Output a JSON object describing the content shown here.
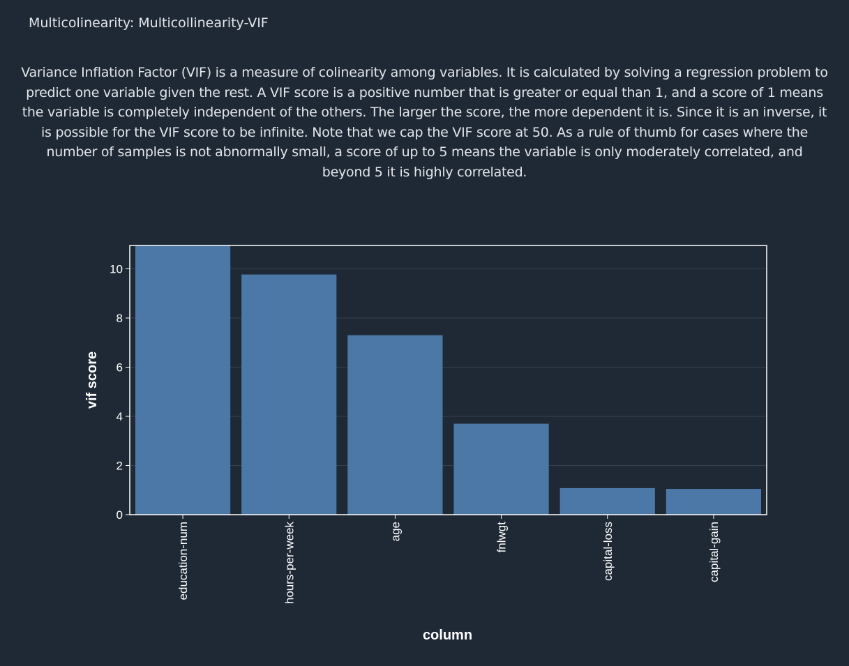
{
  "header": {
    "title": "Multicolinearity: Multicollinearity-VIF"
  },
  "description": "Variance Inflation Factor (VIF) is a measure of colinearity among variables. It is calculated by solving a regression problem to predict one variable given the rest. A VIF score is a positive number that is greater or equal than 1, and a score of 1 means the variable is completely independent of the others. The larger the score, the more dependent it is. Since it is an inverse, it is possible for the VIF score to be infinite. Note that we cap the VIF score at 50. As a rule of thumb for cases where the number of samples is not abnormally small, a score of up to 5 means the variable is only moderately correlated, and beyond 5 it is highly correlated.",
  "colors": {
    "background": "#1f2935",
    "bar": "#4c78a8",
    "frame": "#ffffff",
    "grid": "#34404e",
    "text": "#ffffff"
  },
  "chart_data": {
    "type": "bar",
    "categories": [
      "education-num",
      "hours-per-week",
      "age",
      "fnlwgt",
      "capital-loss",
      "capital-gain"
    ],
    "values": [
      10.95,
      9.77,
      7.3,
      3.7,
      1.08,
      1.05
    ],
    "xlabel": "column",
    "ylabel": "vif score",
    "ylim": [
      0,
      10.95
    ],
    "yticks": [
      0,
      2,
      4,
      6,
      8,
      10
    ],
    "grid": true,
    "legend": "none"
  }
}
